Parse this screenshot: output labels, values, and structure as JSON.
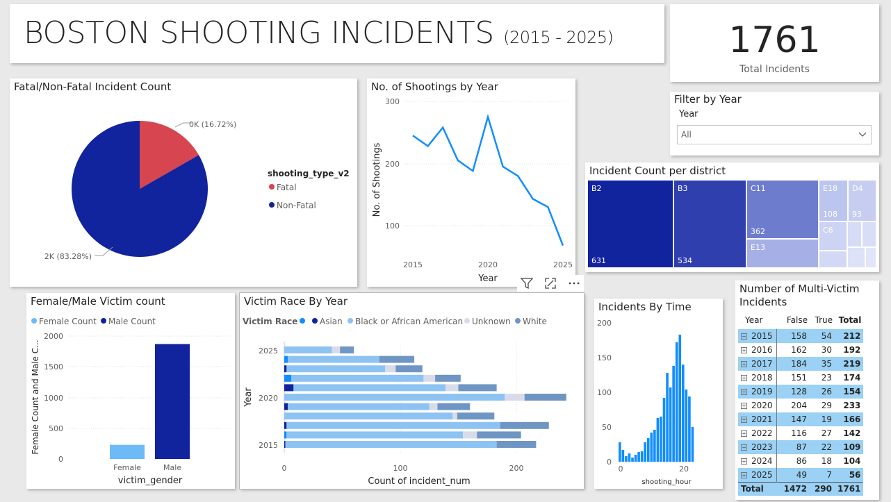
{
  "header": {
    "title": "BOSTON SHOOTING INCIDENTS",
    "subtitle": "(2015 - 2025)"
  },
  "kpi": {
    "value": "1761",
    "label": "Total Incidents"
  },
  "slicer": {
    "title": "Filter by Year",
    "field": "Year",
    "selected": "All"
  },
  "colors": {
    "fatal": "#d64550",
    "nonfatal": "#12239e",
    "line": "#118dff",
    "female": "#6cbbf7",
    "male": "#12239e",
    "asian": "#118dff",
    "black": "#8dc3f2",
    "unknown": "#d9dce8",
    "white": "#6f96c3",
    "asian_dark": "#12239e"
  },
  "pie": {
    "title": "Fatal/Non-Fatal Incident Count",
    "legend_title": "shooting_type_v2",
    "slices": [
      {
        "name": "Fatal",
        "value": 0.1672,
        "label": "0K (16.72%)"
      },
      {
        "name": "Non-Fatal",
        "value": 0.8328,
        "label": "2K (83.28%)"
      }
    ]
  },
  "line_chart": {
    "title": "No. of Shootings by Year",
    "xlabel": "Year",
    "ylabel": "No. of Shootings",
    "x_ticks": [
      "2015",
      "2020",
      "2025"
    ],
    "y_ticks": [
      "100",
      "200",
      "300"
    ]
  },
  "treemap": {
    "title": "Incident Count per district",
    "items": [
      {
        "name": "B2",
        "value": "631"
      },
      {
        "name": "B3",
        "value": "534"
      },
      {
        "name": "C11",
        "value": "362"
      },
      {
        "name": "E13",
        "value": ""
      },
      {
        "name": "E18",
        "value": "108"
      },
      {
        "name": "D4",
        "value": "93"
      },
      {
        "name": "C6",
        "value": ""
      }
    ]
  },
  "gender_chart": {
    "title": "Female/Male Victim count",
    "legend": [
      "Female Count",
      "Male Count"
    ],
    "xlabel": "victim_gender",
    "ylabel": "Female Count and Male C...",
    "y_ticks": [
      "0",
      "500",
      "1000",
      "1500",
      "2000"
    ]
  },
  "race_chart": {
    "title": "Victim Race By Year",
    "legend_title": "Victim Race",
    "legend": [
      "Asian",
      "Black or African American",
      "Unknown",
      "White"
    ],
    "xlabel": "Count of incident_num",
    "ylabel": "Year",
    "x_ticks": [
      "0",
      "100",
      "200"
    ],
    "y_ticks": [
      "2025",
      "2020",
      "2015"
    ]
  },
  "hour_chart": {
    "title": "Incidents By Time",
    "xlabel": "shooting_hour",
    "x_ticks": [
      "0",
      "20"
    ],
    "y_ticks": [
      "0",
      "50",
      "100",
      "150",
      "200"
    ]
  },
  "multi_victim": {
    "title": "Number of Multi-Victim Incidents",
    "headers": [
      "Year",
      "False",
      "True",
      "Total"
    ],
    "rows": [
      [
        "2015",
        "158",
        "54",
        "212"
      ],
      [
        "2016",
        "162",
        "30",
        "192"
      ],
      [
        "2017",
        "184",
        "35",
        "219"
      ],
      [
        "2018",
        "151",
        "23",
        "174"
      ],
      [
        "2019",
        "128",
        "26",
        "154"
      ],
      [
        "2020",
        "204",
        "29",
        "233"
      ],
      [
        "2021",
        "147",
        "19",
        "166"
      ],
      [
        "2022",
        "116",
        "27",
        "142"
      ],
      [
        "2023",
        "87",
        "22",
        "109"
      ],
      [
        "2024",
        "86",
        "18",
        "104"
      ],
      [
        "2025",
        "49",
        "7",
        "56"
      ]
    ],
    "total": [
      "Total",
      "1472",
      "290",
      "1761"
    ]
  },
  "chart_data": [
    {
      "type": "pie",
      "title": "Fatal/Non-Fatal Incident Count",
      "labels": [
        "Fatal",
        "Non-Fatal"
      ],
      "values": [
        16.72,
        83.28
      ],
      "legend": "right"
    },
    {
      "type": "line",
      "title": "No. of Shootings by Year",
      "x": [
        2015,
        2016,
        2017,
        2018,
        2019,
        2020,
        2021,
        2022,
        2023,
        2024,
        2025
      ],
      "series": [
        {
          "name": "No. of Shootings",
          "values": [
            245,
            228,
            258,
            205,
            188,
            275,
            195,
            180,
            143,
            130,
            68
          ]
        }
      ],
      "xlabel": "Year",
      "ylabel": "No. of Shootings",
      "ylim": [
        50,
        300
      ]
    },
    {
      "type": "heatmap",
      "title": "Incident Count per district",
      "categories": [
        "B2",
        "B3",
        "C11",
        "E18",
        "D4"
      ],
      "values": [
        631,
        534,
        362,
        108,
        93
      ]
    },
    {
      "type": "bar",
      "title": "Female/Male Victim count",
      "categories": [
        "Female",
        "Male"
      ],
      "series": [
        {
          "name": "Female Count",
          "values": [
            230,
            0
          ]
        },
        {
          "name": "Male Count",
          "values": [
            0,
            1870
          ]
        }
      ],
      "xlabel": "victim_gender",
      "ylabel": "Female Count and Male C...",
      "ylim": [
        0,
        2000
      ]
    },
    {
      "type": "bar",
      "orientation": "horizontal-stacked",
      "title": "Victim Race By Year",
      "categories": [
        "2025",
        "2024",
        "2023",
        "2022",
        "2021",
        "2020",
        "2019",
        "2018",
        "2017",
        "2016",
        "2015"
      ],
      "series": [
        {
          "name": "Asian",
          "values": [
            0,
            3,
            2,
            6,
            8,
            0,
            3,
            0,
            2,
            2,
            1
          ]
        },
        {
          "name": "Black or African American",
          "values": [
            41,
            79,
            85,
            114,
            131,
            190,
            122,
            145,
            184,
            152,
            182
          ]
        },
        {
          "name": "Unknown",
          "values": [
            7,
            0,
            9,
            10,
            11,
            17,
            7,
            4,
            0,
            12,
            0
          ]
        },
        {
          "name": "White",
          "values": [
            12,
            30,
            23,
            22,
            33,
            36,
            28,
            32,
            42,
            38,
            34
          ]
        }
      ],
      "xlabel": "Count of incident_num",
      "ylabel": "Year",
      "xlim": [
        0,
        240
      ]
    },
    {
      "type": "bar",
      "title": "Incidents By Time",
      "categories": [
        0,
        1,
        2,
        3,
        4,
        5,
        6,
        7,
        8,
        9,
        10,
        11,
        12,
        13,
        14,
        15,
        16,
        17,
        18,
        19,
        20,
        21,
        22,
        23
      ],
      "values": [
        28,
        17,
        8,
        12,
        6,
        10,
        14,
        15,
        28,
        34,
        42,
        46,
        63,
        65,
        92,
        128,
        107,
        138,
        172,
        183,
        140,
        104,
        94,
        50
      ],
      "xlabel": "shooting_hour",
      "ylim": [
        0,
        200
      ]
    }
  ]
}
